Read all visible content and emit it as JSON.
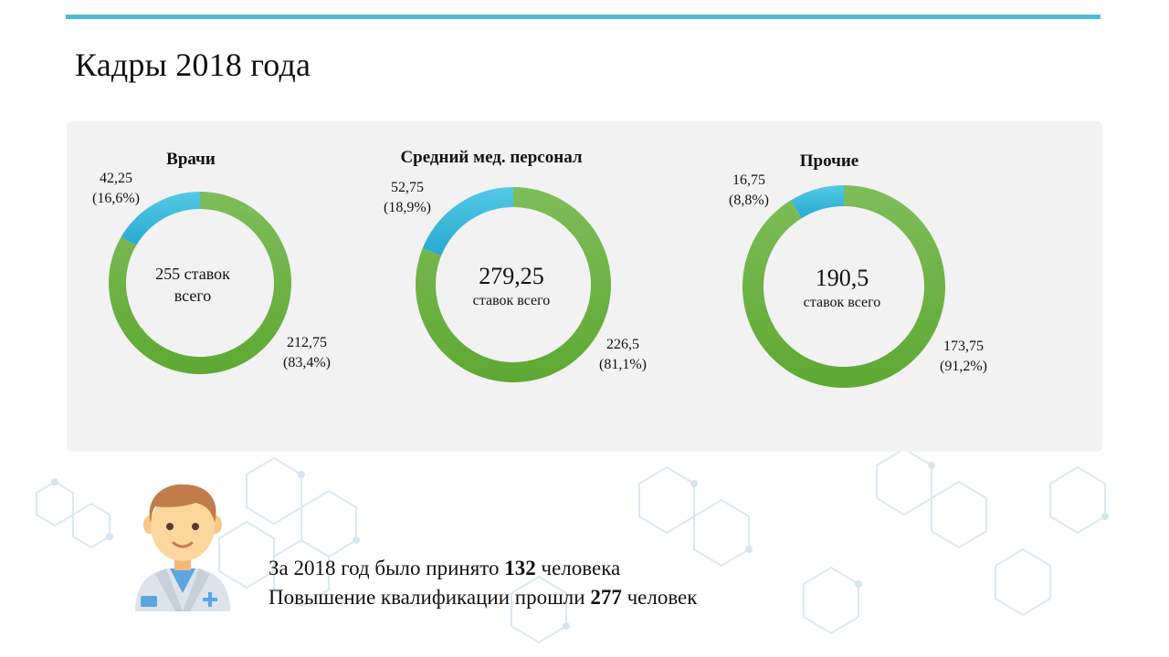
{
  "title": "Кадры 2018 года",
  "colors": {
    "accent_bar": "#4bbcd6",
    "segment_green": "#6fb24a",
    "segment_blue": "#3bbbd9",
    "panel_bg": "#f2f2f2"
  },
  "chart_data": [
    {
      "type": "pie",
      "variant": "donut",
      "title": "Врачи",
      "total_label_lines": [
        "255 ставок",
        "всего"
      ],
      "slices": [
        {
          "value": 212.75,
          "value_label": "212,75",
          "percent_label": "(83,4%)",
          "color": "#6fb24a"
        },
        {
          "value": 42.25,
          "value_label": "42,25",
          "percent_label": "(16,6%)",
          "color": "#3bbbd9"
        }
      ]
    },
    {
      "type": "pie",
      "variant": "donut",
      "title": "Средний мед. персонал",
      "total_label_lines": [
        "279,25",
        "ставок всего"
      ],
      "slices": [
        {
          "value": 226.5,
          "value_label": "226,5",
          "percent_label": "(81,1%)",
          "color": "#6fb24a"
        },
        {
          "value": 52.75,
          "value_label": "52,75",
          "percent_label": "(18,9%)",
          "color": "#3bbbd9"
        }
      ]
    },
    {
      "type": "pie",
      "variant": "donut",
      "title": "Прочие",
      "total_label_lines": [
        "190,5",
        "ставок всего"
      ],
      "slices": [
        {
          "value": 173.75,
          "value_label": "173,75",
          "percent_label": "(91,2%)",
          "color": "#6fb24a"
        },
        {
          "value": 16.75,
          "value_label": "16,75",
          "percent_label": "(8,8%)",
          "color": "#3bbbd9"
        }
      ]
    }
  ],
  "info": {
    "line1_prefix": "За 2018 год было принято ",
    "line1_number": "132",
    "line1_suffix": " человека",
    "line2_prefix": "Повышение квалификации прошли ",
    "line2_number": "277",
    "line2_suffix": " человек"
  },
  "icons": {
    "doctor": "doctor-avatar-icon",
    "background": "hexagon-molecule-pattern"
  }
}
